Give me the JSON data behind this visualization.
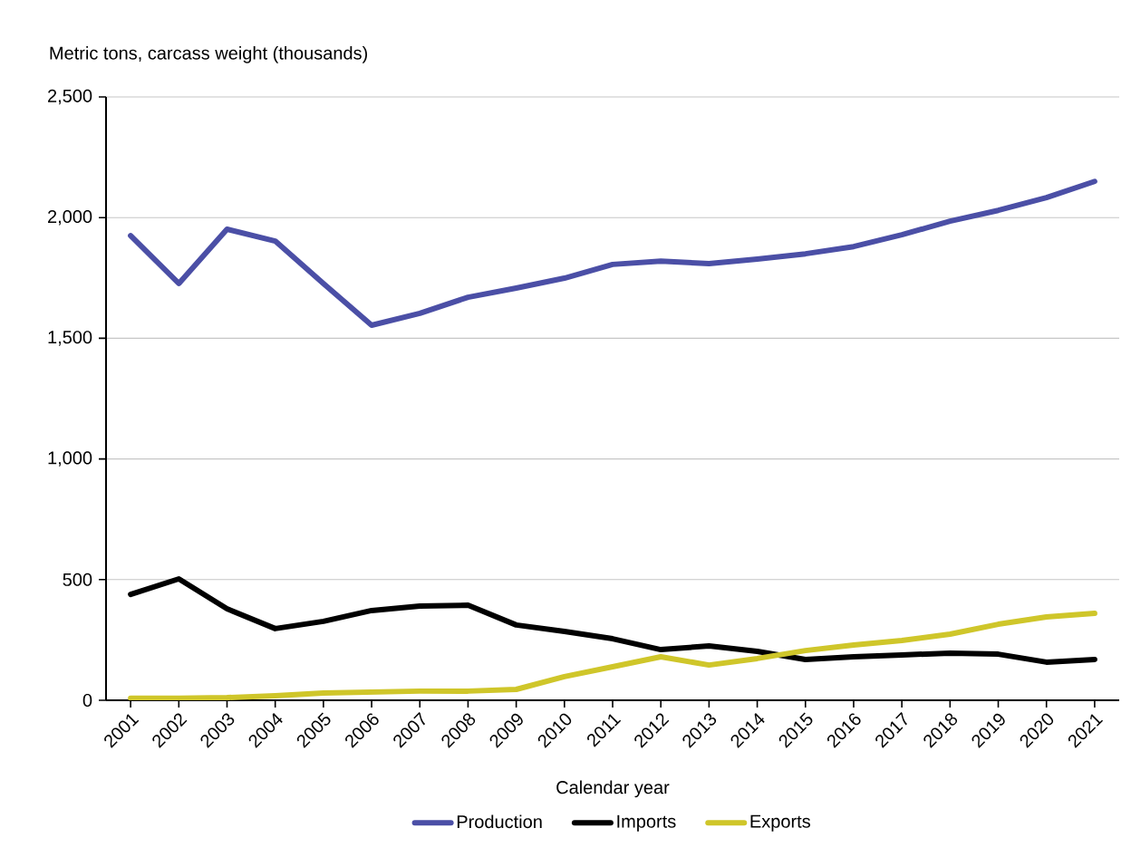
{
  "chart_data": {
    "type": "line",
    "xlabel": "Calendar year",
    "ylabel": "Metric tons, carcass weight (thousands)",
    "categories": [
      "2001",
      "2002",
      "2003",
      "2004",
      "2005",
      "2006",
      "2007",
      "2008",
      "2009",
      "2010",
      "2011",
      "2012",
      "2013",
      "2014",
      "2015",
      "2016",
      "2017",
      "2018",
      "2019",
      "2020",
      "2021"
    ],
    "series": [
      {
        "name": "Production",
        "color": "#4b4fa6",
        "values": [
          1925,
          1727,
          1952,
          1903,
          1727,
          1554,
          1603,
          1670,
          1708,
          1749,
          1806,
          1820,
          1809,
          1828,
          1850,
          1880,
          1929,
          1985,
          2030,
          2083,
          2150
        ]
      },
      {
        "name": "Imports",
        "color": "#000000",
        "values": [
          439,
          503,
          379,
          297,
          327,
          372,
          390,
          394,
          312,
          285,
          255,
          210,
          225,
          203,
          169,
          180,
          188,
          195,
          191,
          158,
          169
        ]
      },
      {
        "name": "Exports",
        "color": "#cfc62a",
        "values": [
          8,
          8,
          11,
          19,
          30,
          34,
          38,
          38,
          45,
          98,
          139,
          180,
          146,
          173,
          206,
          229,
          248,
          274,
          315,
          345,
          360
        ]
      }
    ],
    "ylim": [
      0,
      2500
    ],
    "yticks": [
      0,
      {
        "value": 500,
        "label": "500"
      },
      {
        "value": 1000,
        "label": "1,000"
      },
      {
        "value": 1500,
        "label": "1,500"
      },
      {
        "value": 2000,
        "label": "2,000"
      },
      {
        "value": 2500,
        "label": "2,500"
      }
    ],
    "grid": "y",
    "legend": "bottom"
  }
}
